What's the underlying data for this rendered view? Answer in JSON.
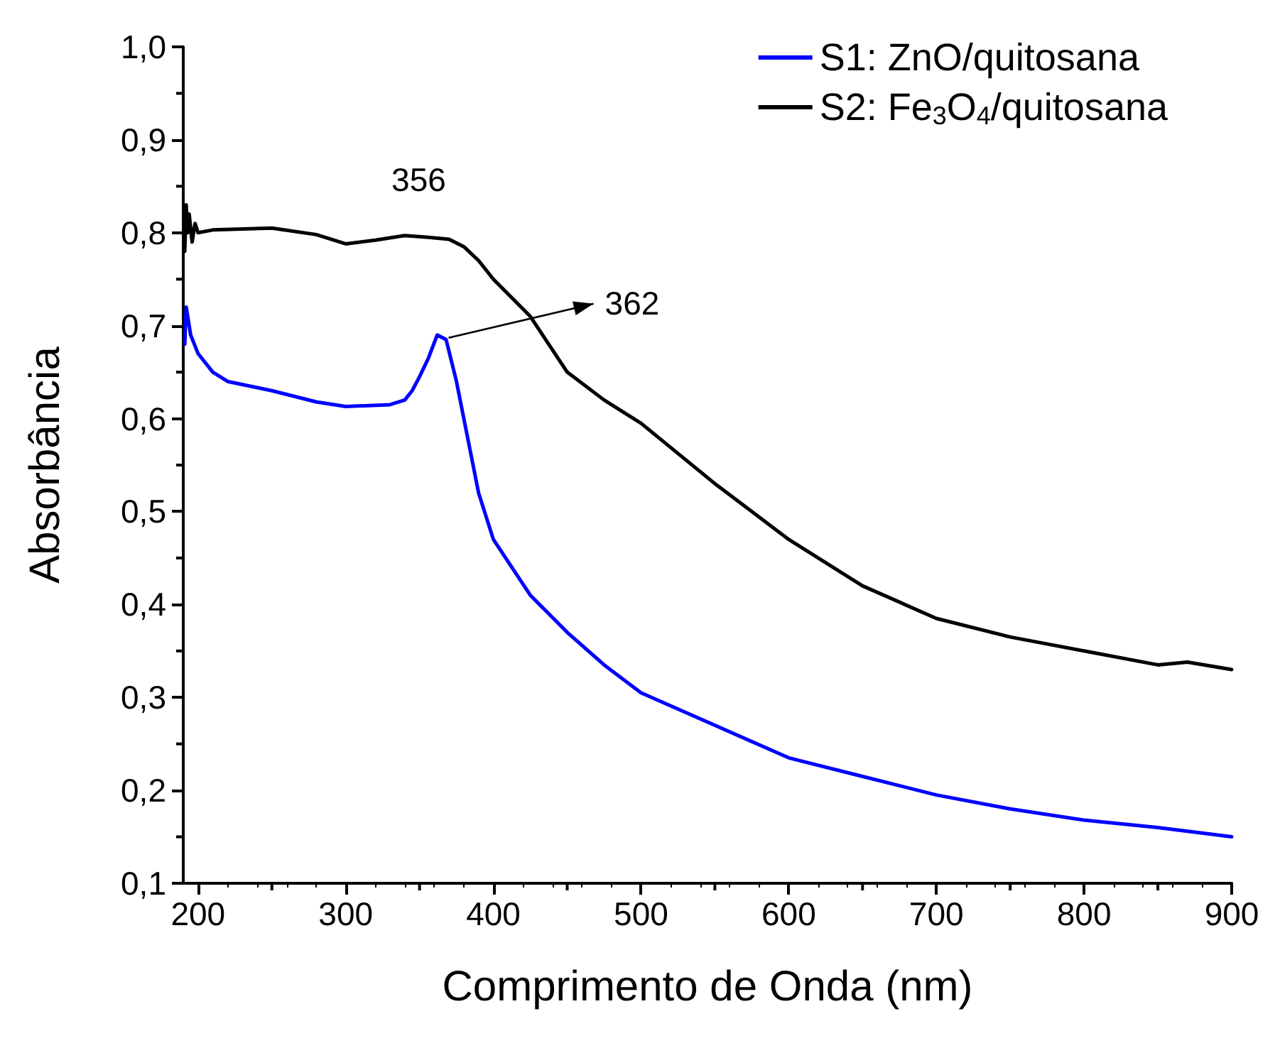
{
  "chart_data": {
    "type": "line",
    "xlabel": "Comprimento de Onda (nm)",
    "ylabel": "Absorbância",
    "xlim": [
      190,
      900
    ],
    "ylim": [
      0.1,
      1.0
    ],
    "xticks": [
      200,
      300,
      400,
      500,
      600,
      700,
      800,
      900
    ],
    "yticks": [
      {
        "value": 0.1,
        "label": "0,1"
      },
      {
        "value": 0.2,
        "label": "0,2"
      },
      {
        "value": 0.3,
        "label": "0,3"
      },
      {
        "value": 0.4,
        "label": "0,4"
      },
      {
        "value": 0.5,
        "label": "0,5"
      },
      {
        "value": 0.6,
        "label": "0,6"
      },
      {
        "value": 0.7,
        "label": "0,7"
      },
      {
        "value": 0.8,
        "label": "0,8"
      },
      {
        "value": 0.9,
        "label": "0,9"
      },
      {
        "value": 1.0,
        "label": "1,0"
      }
    ],
    "legend": "top right",
    "grid": false,
    "marker": "none",
    "line_style": "solid",
    "series": [
      {
        "name": "S1: ZnO/quitosana",
        "color": "#0000ff",
        "x": [
          191,
          192,
          195,
          200,
          210,
          220,
          250,
          280,
          300,
          330,
          340,
          345,
          350,
          356,
          362,
          368,
          375,
          380,
          390,
          400,
          425,
          450,
          475,
          500,
          550,
          600,
          650,
          700,
          750,
          800,
          850,
          900
        ],
        "values": [
          0.68,
          0.72,
          0.69,
          0.67,
          0.65,
          0.64,
          0.63,
          0.618,
          0.613,
          0.615,
          0.62,
          0.63,
          0.645,
          0.665,
          0.69,
          0.685,
          0.64,
          0.6,
          0.52,
          0.47,
          0.41,
          0.37,
          0.335,
          0.305,
          0.27,
          0.235,
          0.215,
          0.195,
          0.18,
          0.168,
          0.16,
          0.15
        ]
      },
      {
        "name": "S2: Fe$_{3}$O$_{4}$/quitosana",
        "color": "#000000",
        "x": [
          191,
          192,
          193,
          194,
          196,
          198,
          200,
          210,
          250,
          280,
          300,
          320,
          340,
          356,
          370,
          380,
          390,
          400,
          425,
          450,
          475,
          500,
          550,
          600,
          650,
          700,
          750,
          800,
          850,
          870,
          900
        ],
        "values": [
          0.78,
          0.83,
          0.8,
          0.82,
          0.79,
          0.81,
          0.8,
          0.803,
          0.805,
          0.798,
          0.788,
          0.792,
          0.797,
          0.795,
          0.793,
          0.785,
          0.77,
          0.75,
          0.71,
          0.65,
          0.62,
          0.595,
          0.53,
          0.47,
          0.42,
          0.385,
          0.365,
          0.35,
          0.335,
          0.338,
          0.33
        ]
      }
    ],
    "annotations": [
      {
        "text": "356",
        "x": 356,
        "y": 0.795
      },
      {
        "text": "362",
        "x": 362,
        "y": 0.69
      }
    ]
  }
}
